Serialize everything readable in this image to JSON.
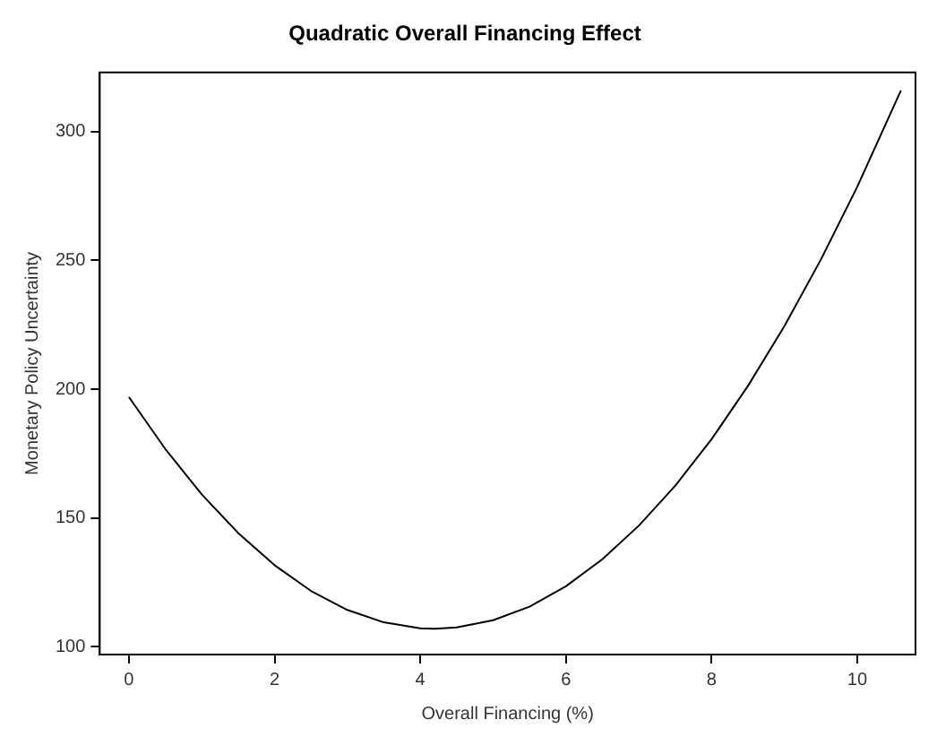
{
  "chart_data": {
    "type": "line",
    "title": "Quadratic Overall Financing Effect",
    "xlabel": "Overall Financing (%)",
    "ylabel": "Monetary Policy Uncertainty",
    "x": [
      0,
      0.5,
      1,
      1.5,
      2,
      2.5,
      3,
      3.5,
      4,
      4.2,
      4.5,
      5,
      5.5,
      6,
      6.5,
      7,
      7.5,
      8,
      8.5,
      9,
      9.5,
      10,
      10.6
    ],
    "series": [
      {
        "color": "#000000",
        "values": [
          197,
          176.8,
          159.2,
          144.2,
          131.7,
          121.7,
          114.3,
          109.5,
          107.2,
          107,
          107.5,
          110.3,
          115.6,
          123.5,
          134,
          147,
          162.5,
          180.6,
          201.3,
          224.5,
          250.3,
          278.6,
          316
        ]
      }
    ],
    "xlim": [
      -0.4,
      10.8
    ],
    "ylim": [
      97,
      323
    ],
    "xticks": [
      0,
      2,
      4,
      6,
      8,
      10
    ],
    "yticks": [
      100,
      150,
      200,
      250,
      300
    ],
    "grid": false,
    "legend": false,
    "marker": "none",
    "line_style": "solid"
  }
}
